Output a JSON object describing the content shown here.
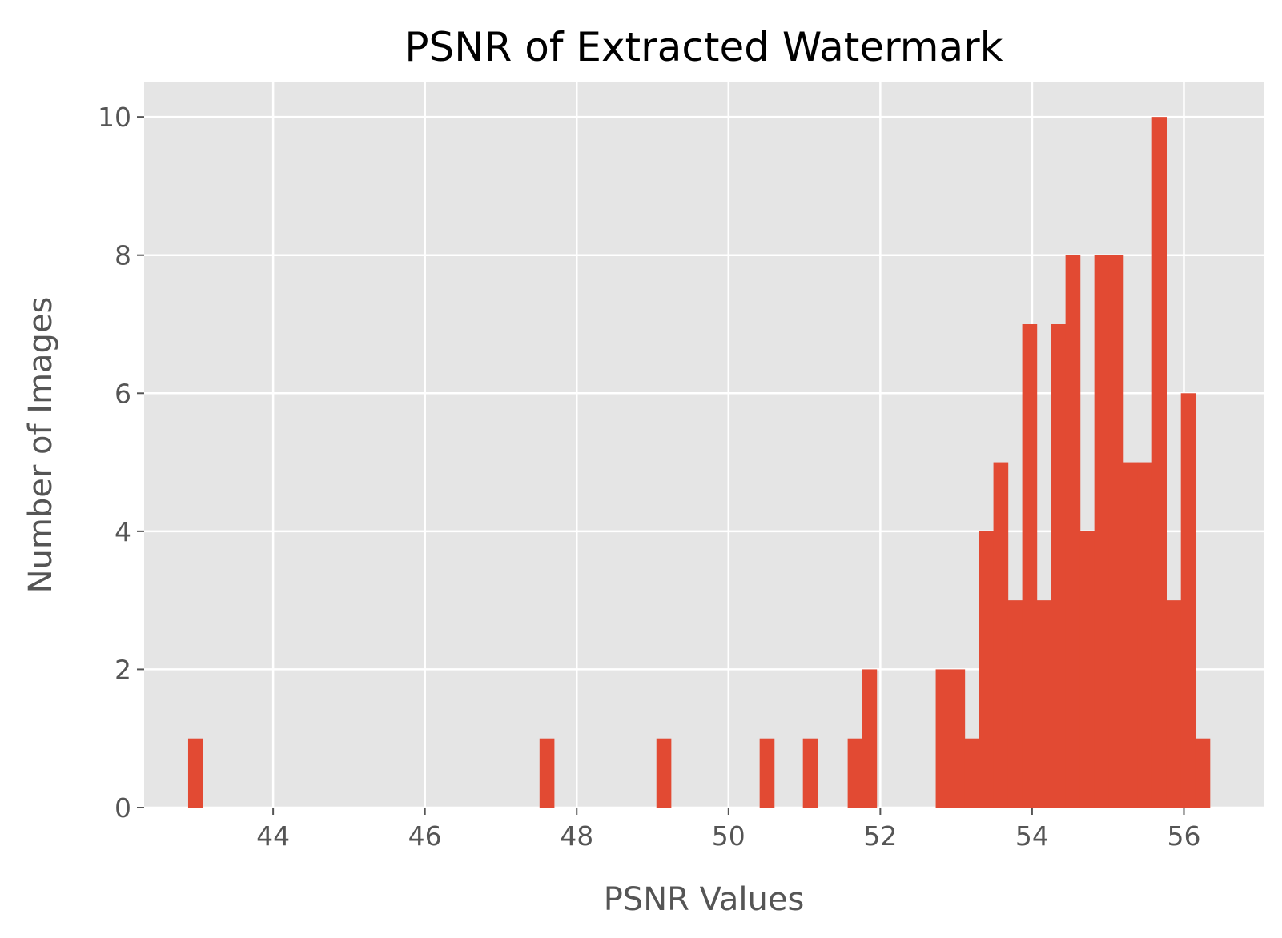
{
  "chart_data": {
    "type": "bar",
    "title": "PSNR of Extracted Watermark",
    "xlabel": "PSNR Values",
    "ylabel": "Number of Images",
    "xlim": [
      42.3,
      57.05
    ],
    "ylim": [
      0,
      10.5
    ],
    "xticks": [
      44,
      46,
      48,
      50,
      52,
      54,
      56
    ],
    "yticks": [
      0,
      2,
      4,
      6,
      8,
      10
    ],
    "bin_width": 0.19,
    "grid": true,
    "background": "#e5e5e5",
    "bar_color": "#e24a33",
    "bins": [
      {
        "x": 42.88,
        "count": 1
      },
      {
        "x": 47.51,
        "count": 1
      },
      {
        "x": 49.05,
        "count": 1
      },
      {
        "x": 50.41,
        "count": 1
      },
      {
        "x": 50.98,
        "count": 1
      },
      {
        "x": 51.57,
        "count": 1
      },
      {
        "x": 51.76,
        "count": 2
      },
      {
        "x": 52.73,
        "count": 2
      },
      {
        "x": 52.92,
        "count": 2
      },
      {
        "x": 53.11,
        "count": 1
      },
      {
        "x": 53.3,
        "count": 4
      },
      {
        "x": 53.49,
        "count": 5
      },
      {
        "x": 53.68,
        "count": 3
      },
      {
        "x": 53.87,
        "count": 7
      },
      {
        "x": 54.06,
        "count": 3
      },
      {
        "x": 54.25,
        "count": 7
      },
      {
        "x": 54.44,
        "count": 8
      },
      {
        "x": 54.63,
        "count": 4
      },
      {
        "x": 54.82,
        "count": 8
      },
      {
        "x": 55.01,
        "count": 8
      },
      {
        "x": 55.2,
        "count": 5
      },
      {
        "x": 55.39,
        "count": 5
      },
      {
        "x": 55.58,
        "count": 10
      },
      {
        "x": 55.77,
        "count": 3
      },
      {
        "x": 55.96,
        "count": 6
      },
      {
        "x": 56.15,
        "count": 1
      }
    ]
  }
}
